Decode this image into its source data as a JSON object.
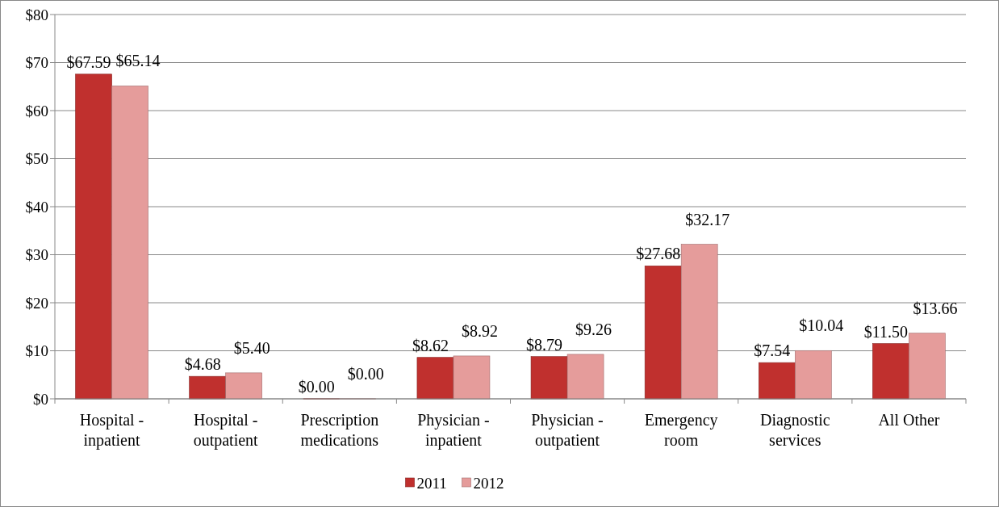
{
  "chart_data": {
    "type": "bar",
    "categories": [
      "Hospital - inpatient",
      "Hospital - outpatient",
      "Prescription medications",
      "Physician - inpatient",
      "Physician - outpatient",
      "Emergency room",
      "Diagnostic services",
      "All Other"
    ],
    "series": [
      {
        "name": "2011",
        "color": "#c0302e",
        "values": [
          67.59,
          4.68,
          0,
          8.62,
          8.79,
          27.68,
          7.54,
          11.5
        ],
        "value_labels": [
          "$67.59",
          "$4.68",
          "$0.00",
          "$8.62",
          "$8.79",
          "$27.68",
          "$7.54",
          "$11.50"
        ]
      },
      {
        "name": "2012",
        "color": "#e59c9b",
        "values": [
          65.14,
          5.4,
          0,
          8.92,
          9.26,
          32.17,
          10.04,
          13.66
        ],
        "value_labels": [
          "$65.14",
          "$5.40",
          "$0.00",
          "$8.92",
          "$9.26",
          "$32.17",
          "$10.04",
          "$13.66"
        ]
      }
    ],
    "ylim": [
      0,
      80
    ],
    "yticks": [
      {
        "value": 0,
        "label": "$0"
      },
      {
        "value": 10,
        "label": "$10"
      },
      {
        "value": 20,
        "label": "$20"
      },
      {
        "value": 30,
        "label": "$30"
      },
      {
        "value": 40,
        "label": "$40"
      },
      {
        "value": 50,
        "label": "$50"
      },
      {
        "value": 60,
        "label": "$60"
      },
      {
        "value": 70,
        "label": "$70"
      },
      {
        "value": 80,
        "label": "$80"
      }
    ],
    "grid": "y",
    "legend": "bottom"
  }
}
